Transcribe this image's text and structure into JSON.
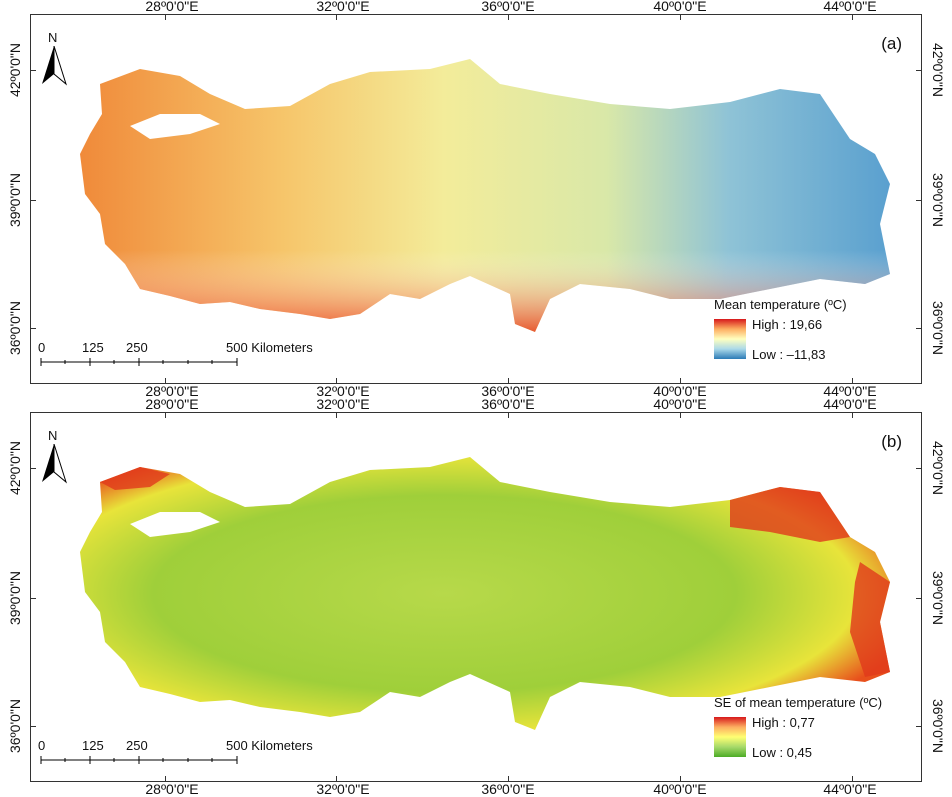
{
  "panels": [
    {
      "label": "(a)",
      "legend": {
        "title": "Mean temperature (ºC)",
        "high": "High : 19,66",
        "low": "Low : –11,83",
        "colors": [
          "#d7191c",
          "#fdae61",
          "#ffffbf",
          "#abd9e9",
          "#2c7bb6"
        ]
      }
    },
    {
      "label": "(b)",
      "legend": {
        "title": "SE of mean temperature (ºC)",
        "high": "High : 0,77",
        "low": "Low : 0,45",
        "colors": [
          "#d7191c",
          "#fdae61",
          "#ffff73",
          "#a6d96a",
          "#4dac26"
        ]
      }
    }
  ],
  "graticule": {
    "longitudes": [
      "28º0'0\"E",
      "32º0'0\"E",
      "36º0'0\"E",
      "40º0'0\"E",
      "44º0'0\"E"
    ],
    "latitudes": [
      "42º0'0\"N",
      "39º0'0\"N",
      "36º0'0\"N"
    ]
  },
  "north_arrow": "N",
  "scalebar": {
    "labels": [
      "0",
      "125",
      "250",
      "500 Kilometers"
    ]
  }
}
